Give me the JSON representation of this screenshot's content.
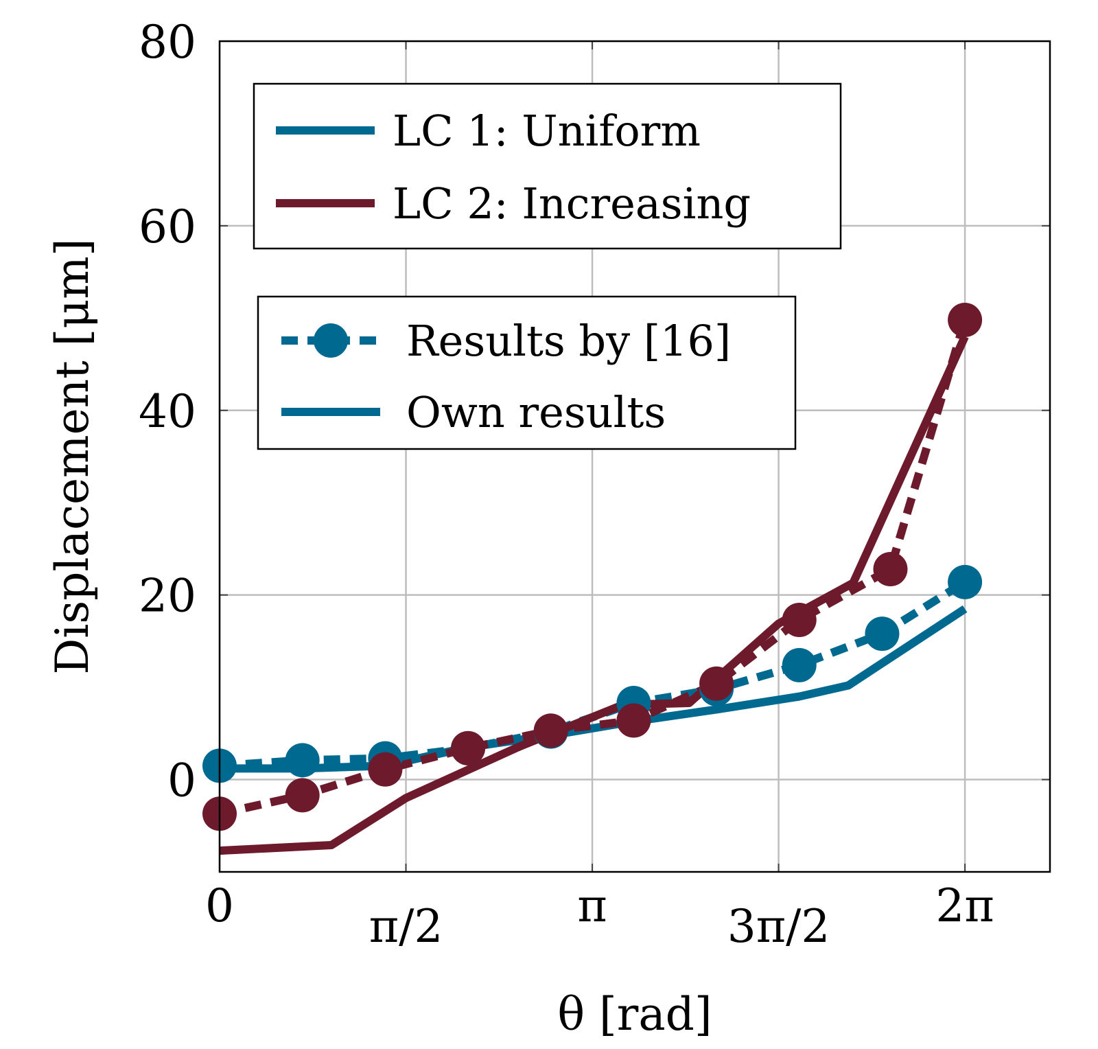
{
  "chart_data": {
    "type": "line",
    "xlabel": "θ [rad]",
    "ylabel": "Displacement [μm]",
    "xlim": [
      0,
      7.0
    ],
    "ylim": [
      -10,
      80
    ],
    "x_ticks": [
      {
        "value": 0,
        "label": "0"
      },
      {
        "value": 1.5708,
        "label": "π/2"
      },
      {
        "value": 3.1416,
        "label": "π"
      },
      {
        "value": 4.7124,
        "label": "3π/2"
      },
      {
        "value": 6.2832,
        "label": "2π"
      }
    ],
    "y_ticks": [
      {
        "value": 0,
        "label": "0"
      },
      {
        "value": 20,
        "label": "20"
      },
      {
        "value": 40,
        "label": "40"
      },
      {
        "value": 60,
        "label": "60"
      },
      {
        "value": 80,
        "label": "80"
      }
    ],
    "grid": true,
    "colors": {
      "lc1": "#00698f",
      "lc2": "#6d1a2d"
    },
    "series": [
      {
        "name": "LC 1: Uniform",
        "style": "reference",
        "color": "#00698f",
        "x": [
          0,
          0.6981,
          1.3963,
          2.0944,
          2.7925,
          3.4907,
          4.1888,
          4.8869,
          5.5851,
          6.2832
        ],
        "y": [
          1.5,
          2.1,
          2.3,
          3.4,
          5.2,
          8.3,
          9.8,
          12.4,
          15.8,
          21.4
        ]
      },
      {
        "name": "LC 1: Uniform",
        "style": "own",
        "color": "#00698f",
        "x": [
          0,
          0.6981,
          1.3963,
          2.0944,
          2.7925,
          3.4907,
          4.1888,
          4.8869,
          5.3,
          6.2832
        ],
        "y": [
          1.2,
          1.2,
          1.5,
          3.5,
          4.8,
          6.3,
          7.6,
          9.0,
          10.2,
          18.5
        ]
      },
      {
        "name": "LC 2: Increasing",
        "style": "reference",
        "color": "#6d1a2d",
        "x": [
          0,
          0.6981,
          1.3963,
          2.0944,
          2.7925,
          3.4907,
          4.1888,
          4.8869,
          5.6549,
          6.2832
        ],
        "y": [
          -3.7,
          -1.7,
          1.1,
          3.4,
          5.3,
          6.4,
          10.4,
          17.3,
          22.8,
          49.8
        ]
      },
      {
        "name": "LC 2: Increasing",
        "style": "own",
        "color": "#6d1a2d",
        "x": [
          0,
          0.9425,
          1.5708,
          2.5133,
          3.4,
          3.9584,
          4.7124,
          5.3407,
          6.2832
        ],
        "y": [
          -7.7,
          -7.1,
          -2.0,
          3.5,
          8.1,
          8.3,
          16.9,
          21.3,
          48.0
        ]
      }
    ]
  },
  "legend_loadcases": {
    "items": [
      {
        "label": "LC 1: Uniform",
        "color": "#00698f"
      },
      {
        "label": "LC 2: Increasing",
        "color": "#6d1a2d"
      }
    ]
  },
  "legend_styles": {
    "items": [
      {
        "label": "Results by [16]",
        "style": "reference",
        "color": "#00698f"
      },
      {
        "label": "Own results",
        "style": "own",
        "color": "#00698f"
      }
    ]
  }
}
